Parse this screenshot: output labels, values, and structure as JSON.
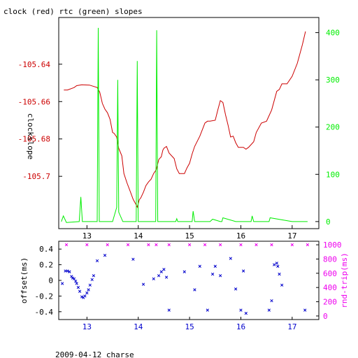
{
  "title": "clock (red) rtc (green) slopes",
  "footer": "2009-04-12 charse",
  "colors": {
    "frame": "#000000",
    "red": "#cc0000",
    "green": "#00ee00",
    "blue": "#0000cc",
    "magenta": "#ee00ee"
  },
  "chart_data": [
    {
      "type": "line",
      "title": "clock (red) rtc (green) slopes",
      "ylabel": "clockslope",
      "xlim": [
        12.45,
        17.52
      ],
      "ylim_left": [
        -105.728,
        -105.615
      ],
      "ylim_right": [
        -15,
        432
      ],
      "x_ticks": [
        "13",
        "14",
        "15",
        "16",
        "17"
      ],
      "y_ticks_left": [
        "-105.64",
        "-105.66",
        "-105.68",
        "-105.7"
      ],
      "y_ticks_right": [
        "0",
        "100",
        "200",
        "300",
        "400"
      ],
      "series": [
        {
          "name": "clock (red)",
          "axis": "left",
          "x": [
            12.55,
            12.62,
            12.75,
            12.8,
            12.9,
            13.05,
            13.2,
            13.25,
            13.3,
            13.35,
            13.4,
            13.45,
            13.5,
            13.53,
            13.58,
            13.62,
            13.68,
            13.72,
            13.78,
            13.85,
            13.9,
            13.95,
            13.98,
            14.02,
            14.05,
            14.1,
            14.15,
            14.2,
            14.25,
            14.3,
            14.35,
            14.4,
            14.45,
            14.48,
            14.5,
            14.55,
            14.6,
            14.7,
            14.75,
            14.8,
            14.9,
            14.95,
            15.0,
            15.05,
            15.1,
            15.2,
            15.3,
            15.35,
            15.4,
            15.5,
            15.55,
            15.6,
            15.65,
            15.7,
            15.75,
            15.8,
            15.85,
            15.9,
            15.95,
            16.0,
            16.05,
            16.1,
            16.15,
            16.25,
            16.3,
            16.4,
            16.5,
            16.6,
            16.7,
            16.75,
            16.8,
            16.9,
            17.0,
            17.1,
            17.2,
            17.26
          ],
          "y": [
            -105.6538,
            -105.6538,
            -105.6525,
            -105.6515,
            -105.651,
            -105.6512,
            -105.6525,
            -105.655,
            -105.661,
            -105.664,
            -105.666,
            -105.6695,
            -105.6765,
            -105.677,
            -105.679,
            -105.685,
            -105.689,
            -105.6985,
            -105.7035,
            -105.7085,
            -105.7123,
            -105.7148,
            -105.7165,
            -105.7125,
            -105.7115,
            -105.7085,
            -105.705,
            -105.703,
            -105.7015,
            -105.6985,
            -105.6965,
            -105.691,
            -105.6895,
            -105.686,
            -105.685,
            -105.684,
            -105.6875,
            -105.6905,
            -105.696,
            -105.6985,
            -105.6985,
            -105.6955,
            -105.693,
            -105.688,
            -105.684,
            -105.6785,
            -105.6715,
            -105.6705,
            -105.6705,
            -105.67,
            -105.6645,
            -105.6595,
            -105.6605,
            -105.667,
            -105.6725,
            -105.679,
            -105.6785,
            -105.682,
            -105.6845,
            -105.6845,
            -105.6845,
            -105.6855,
            -105.6845,
            -105.6815,
            -105.6765,
            -105.6715,
            -105.6705,
            -105.6645,
            -105.6545,
            -105.6535,
            -105.6505,
            -105.6505,
            -105.6465,
            -105.6395,
            -105.6295,
            -105.6225
          ]
        },
        {
          "name": "rtc (green)",
          "axis": "right",
          "x": [
            12.5,
            12.54,
            12.6,
            12.85,
            12.88,
            12.91,
            13.1,
            13.2,
            13.22,
            13.24,
            13.3,
            13.5,
            13.58,
            13.6,
            13.62,
            13.7,
            13.85,
            13.96,
            13.98,
            14.0,
            14.02,
            14.1,
            14.3,
            14.34,
            14.36,
            14.38,
            14.6,
            14.73,
            14.75,
            14.77,
            15.0,
            15.05,
            15.07,
            15.1,
            15.4,
            15.45,
            15.6,
            15.63,
            15.65,
            15.9,
            16.0,
            16.2,
            16.22,
            16.25,
            16.5,
            16.55,
            16.57,
            17.0,
            17.3
          ],
          "y": [
            0,
            12,
            -2,
            0,
            52,
            0,
            0,
            0,
            410,
            0,
            0,
            0,
            30,
            300,
            20,
            0,
            0,
            0,
            340,
            0,
            0,
            0,
            0,
            0,
            405,
            0,
            0,
            0,
            6,
            0,
            0,
            0,
            22,
            0,
            0,
            5,
            0,
            0,
            8,
            0,
            0,
            0,
            12,
            0,
            0,
            0,
            8,
            0,
            0
          ]
        }
      ]
    },
    {
      "type": "scatter",
      "ylabel_left": "offset(ms)",
      "ylabel_right": "rnd-trip(ms)",
      "xlim": [
        12.45,
        17.52
      ],
      "ylim_left": [
        -0.5,
        0.5
      ],
      "ylim_right": [
        -50,
        1050
      ],
      "x_ticks": [
        "13",
        "14",
        "15",
        "16",
        "17"
      ],
      "y_ticks_left": [
        "0.4",
        "0.2",
        "0",
        "-0.2",
        "-0.4"
      ],
      "y_ticks_right": [
        "1000",
        "800",
        "600",
        "400",
        "200",
        "0"
      ],
      "series": [
        {
          "name": "offset",
          "axis": "left",
          "x": [
            12.52,
            12.58,
            12.62,
            12.66,
            12.7,
            12.72,
            12.75,
            12.78,
            12.8,
            12.83,
            12.86,
            12.9,
            12.93,
            12.96,
            13.0,
            13.03,
            13.06,
            13.1,
            13.13,
            13.2,
            13.35,
            13.9,
            14.1,
            14.3,
            14.4,
            14.45,
            14.5,
            14.55,
            14.6,
            14.9,
            15.1,
            15.2,
            15.35,
            15.45,
            15.5,
            15.6,
            15.8,
            15.9,
            16.0,
            16.05,
            16.1,
            16.55,
            16.6,
            16.65,
            16.7,
            16.72,
            16.75,
            16.8,
            17.25
          ],
          "y": [
            -0.04,
            0.12,
            0.12,
            0.11,
            0.05,
            0.03,
            0.02,
            -0.01,
            -0.04,
            -0.09,
            -0.14,
            -0.21,
            -0.22,
            -0.2,
            -0.16,
            -0.12,
            -0.06,
            0.01,
            0.06,
            0.25,
            0.32,
            0.27,
            -0.05,
            0.02,
            0.06,
            0.11,
            0.14,
            0.04,
            -0.38,
            0.11,
            -0.12,
            0.18,
            -0.38,
            0.08,
            0.18,
            0.06,
            0.28,
            -0.11,
            -0.38,
            0.12,
            -0.42,
            -0.38,
            -0.26,
            0.2,
            0.22,
            0.18,
            0.08,
            -0.06,
            -0.38
          ]
        },
        {
          "name": "rnd-trip",
          "axis": "right",
          "x": [
            12.6,
            13.0,
            13.4,
            13.8,
            14.2,
            14.35,
            14.6,
            15.0,
            15.3,
            15.6,
            16.0,
            16.3,
            16.6,
            17.0,
            17.3
          ],
          "y": [
            1000,
            1000,
            1000,
            1000,
            1000,
            1000,
            1000,
            1000,
            1000,
            1000,
            1000,
            1000,
            1000,
            1000,
            1000
          ]
        }
      ]
    }
  ]
}
